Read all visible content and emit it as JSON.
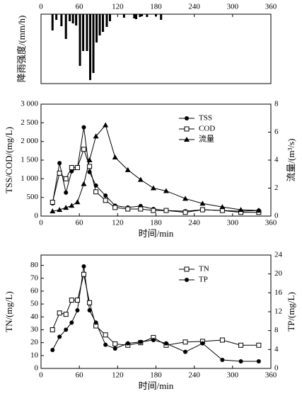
{
  "chart_data": [
    {
      "type": "bar",
      "y_label": "降雨强度/(mm/h)",
      "x_axis_position": "top",
      "inverted": true,
      "color": "#000000",
      "x": [
        18,
        24,
        32,
        39,
        45,
        50,
        55,
        61,
        66,
        72,
        77,
        82,
        87,
        92,
        97,
        103,
        108,
        130,
        146,
        149,
        155,
        158,
        166,
        180,
        188
      ],
      "values": [
        11.5,
        4,
        8.5,
        17.5,
        5,
        6.5,
        8,
        36.5,
        26,
        26,
        46.5,
        41.5,
        20,
        15,
        12.5,
        9,
        5,
        2.5,
        3,
        3.5,
        2,
        1.5,
        2,
        1.5,
        4
      ],
      "xlim": [
        0,
        360
      ],
      "xticks": [
        0,
        60,
        120,
        180,
        240,
        300,
        360
      ],
      "ylim": [
        0,
        49
      ]
    },
    {
      "type": "line",
      "x_label": "时间/min",
      "y_label": "TSS/COD/(mg/L)",
      "y2_label": "流量/(m³/s)",
      "legend": "upper right",
      "x": [
        18,
        29,
        39,
        48,
        57,
        67,
        76,
        86,
        101,
        116,
        136,
        156,
        176,
        196,
        226,
        253,
        284,
        313,
        341
      ],
      "series": [
        {
          "name": "TSS",
          "color": "#000000",
          "marker": "circle",
          "values": [
            340,
            1420,
            630,
            1200,
            1290,
            2380,
            1180,
            820,
            550,
            280,
            230,
            270,
            190,
            150,
            130,
            170,
            150,
            130,
            150
          ]
        },
        {
          "name": "COD",
          "color": "#000000",
          "marker": "square",
          "values": [
            370,
            1150,
            1000,
            1300,
            1300,
            1790,
            1330,
            650,
            420,
            230,
            190,
            190,
            150,
            150,
            100,
            170,
            150,
            100,
            100
          ]
        },
        {
          "name": "流量",
          "color": "#000000",
          "marker": "triangle",
          "axis": "y2",
          "values": [
            0.35,
            0.45,
            0.6,
            0.75,
            1.0,
            2.3,
            4.0,
            5.7,
            6.5,
            4.2,
            3.3,
            2.6,
            2.0,
            1.8,
            1.25,
            0.9,
            0.65,
            0.45,
            0.4
          ]
        }
      ],
      "xlim": [
        0,
        360
      ],
      "xticks": [
        0,
        60,
        120,
        180,
        240,
        300,
        360
      ],
      "ylim": [
        0,
        3000
      ],
      "yticks": [
        0,
        500,
        {
          "value": 1000,
          "label": "1 000"
        },
        {
          "value": 1500,
          "label": "1 500"
        },
        {
          "value": 2000,
          "label": "2 000"
        },
        {
          "value": 2500,
          "label": "2 500"
        },
        {
          "value": 3000,
          "label": "3 000"
        }
      ],
      "y2lim": [
        0,
        8
      ],
      "y2ticks": [
        0,
        2,
        4,
        6,
        8
      ]
    },
    {
      "type": "line",
      "x_label": "时间/min",
      "y_label": "TN/(mg/L)",
      "y2_label": "TP/(mg/L)",
      "legend": "upper right",
      "x": [
        18,
        29,
        39,
        48,
        57,
        67,
        76,
        86,
        101,
        116,
        136,
        156,
        176,
        196,
        226,
        253,
        284,
        313,
        341
      ],
      "series": [
        {
          "name": "TN",
          "color": "#000000",
          "marker": "square",
          "values": [
            30,
            43,
            42,
            53,
            53,
            73,
            51,
            33,
            26,
            19,
            18,
            20,
            24,
            18,
            20.5,
            21,
            22,
            18,
            18
          ]
        },
        {
          "name": "TP",
          "color": "#000000",
          "marker": "circle",
          "axis": "y2",
          "values": [
            3.9,
            6.7,
            8.2,
            9.7,
            12.3,
            21.6,
            12.3,
            9.7,
            5.0,
            4.2,
            5.3,
            5.6,
            6.0,
            5.3,
            3.5,
            5.3,
            1.8,
            1.5,
            1.5
          ]
        }
      ],
      "xlim": [
        0,
        360
      ],
      "xticks": [
        0,
        60,
        120,
        180,
        240,
        300,
        360
      ],
      "ylim": [
        0,
        88
      ],
      "yticks": [
        0,
        10,
        20,
        30,
        40,
        50,
        60,
        70,
        80
      ],
      "y2lim": [
        0,
        24
      ],
      "y2ticks": [
        0,
        4,
        8,
        12,
        16,
        20,
        24
      ]
    }
  ]
}
